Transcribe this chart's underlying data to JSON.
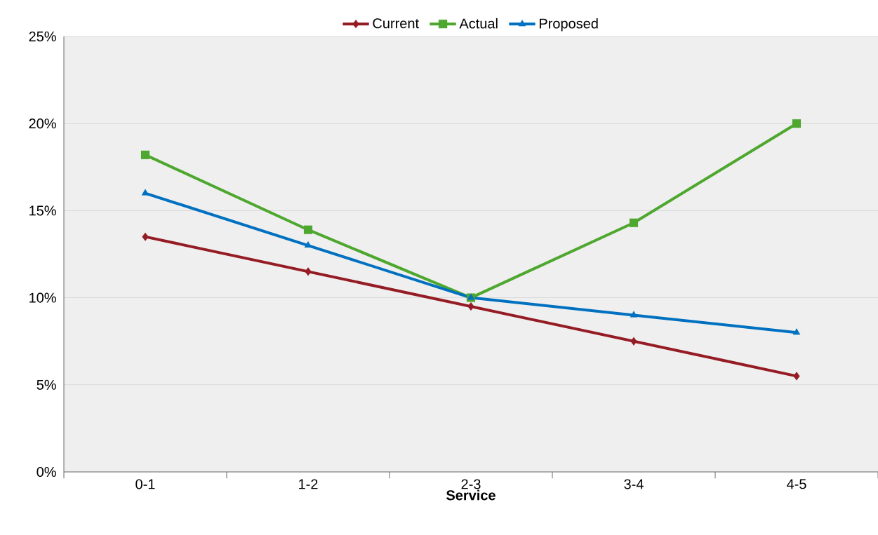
{
  "chart_data": {
    "type": "line",
    "xlabel": "Service",
    "categories": [
      "0-1",
      "1-2",
      "2-3",
      "3-4",
      "4-5"
    ],
    "series": [
      {
        "name": "Current",
        "color": "#951b24",
        "marker": "diamond",
        "values": [
          13.5,
          11.5,
          9.5,
          7.5,
          5.5
        ]
      },
      {
        "name": "Actual",
        "color": "#4ea72e",
        "marker": "square",
        "values": [
          18.2,
          13.9,
          10,
          14.3,
          20
        ]
      },
      {
        "name": "Proposed",
        "color": "#0070c0",
        "marker": "triangle",
        "values": [
          16,
          13,
          10,
          9,
          8
        ]
      }
    ],
    "ylim": [
      0,
      25
    ],
    "yticks": [
      {
        "value": 0,
        "label": "0%"
      },
      {
        "value": 5,
        "label": "5%"
      },
      {
        "value": 10,
        "label": "10%"
      },
      {
        "value": 15,
        "label": "15%"
      },
      {
        "value": 20,
        "label": "20%"
      },
      {
        "value": 25,
        "label": "25%"
      }
    ],
    "grid": "y",
    "legend": "top",
    "line_style": "solid"
  }
}
